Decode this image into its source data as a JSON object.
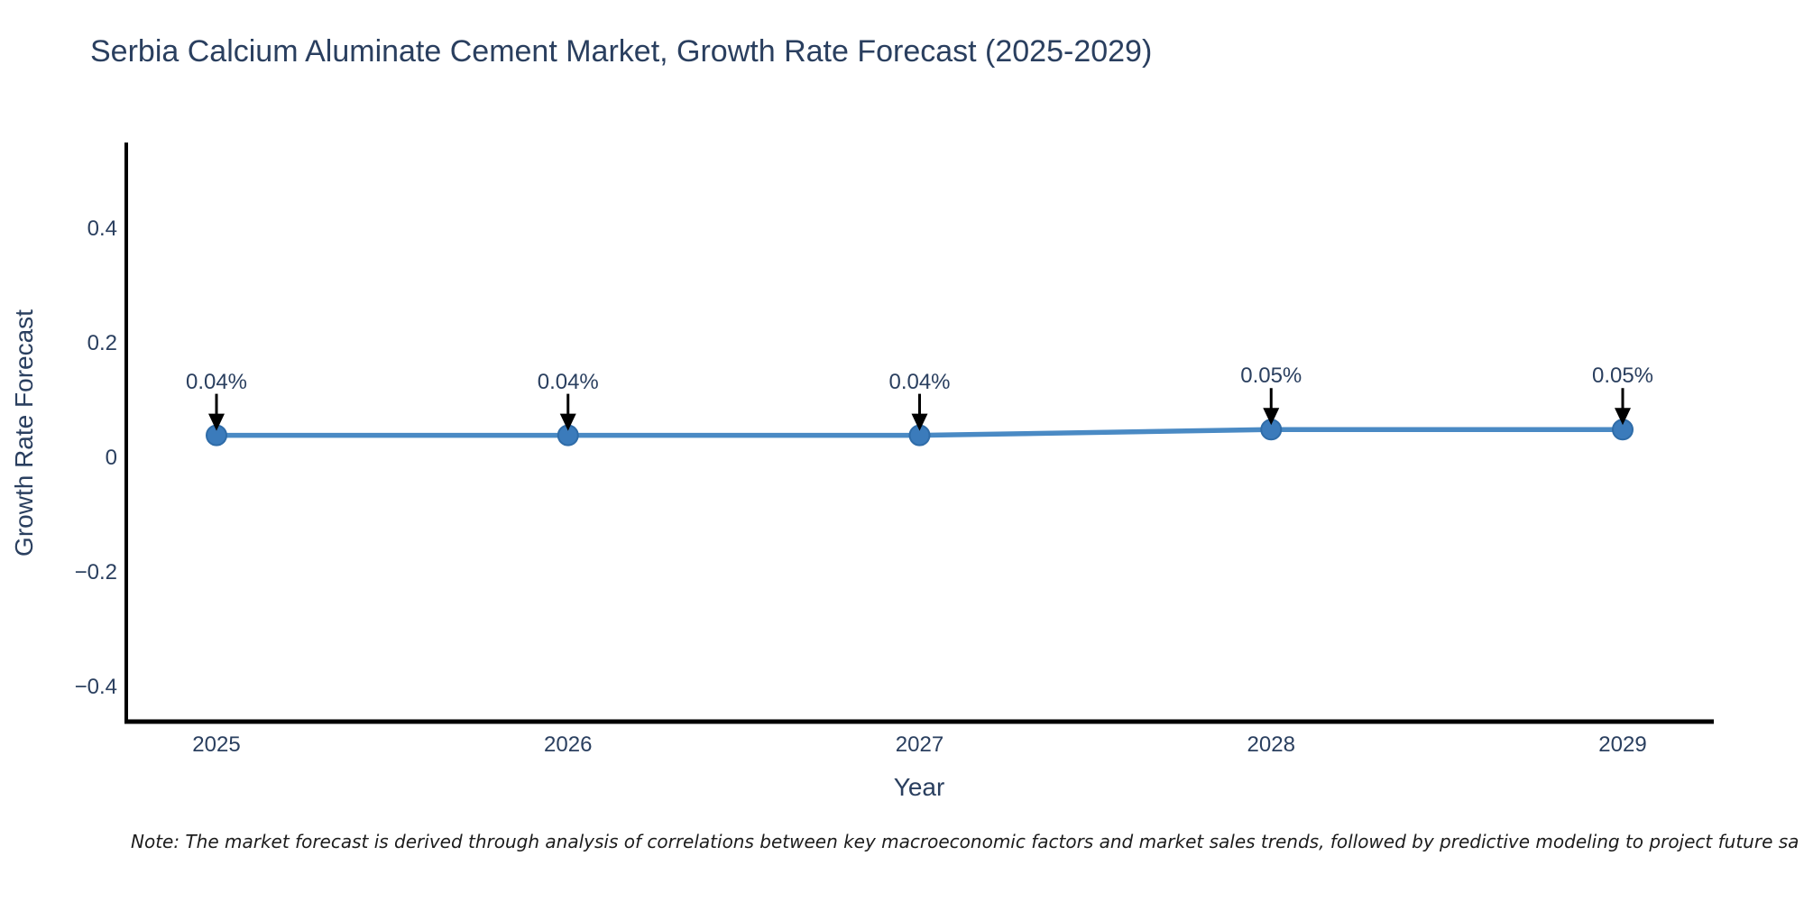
{
  "chart": {
    "title": "Serbia Calcium Aluminate Cement Market, Growth Rate Forecast (2025-2029)",
    "x_axis_title": "Year",
    "y_axis_title": "Growth Rate Forecast",
    "note": "Note: The market forecast is derived through analysis of correlations between key macroeconomic factors and market sales trends, followed by predictive modeling to project future sa"
  },
  "chart_data": {
    "type": "line",
    "title": "Serbia Calcium Aluminate Cement Market, Growth Rate Forecast (2025-2029)",
    "xlabel": "Year",
    "ylabel": "Growth Rate Forecast",
    "x": [
      2025,
      2026,
      2027,
      2028,
      2029
    ],
    "x_tick_labels": [
      "2025",
      "2026",
      "2027",
      "2028",
      "2029"
    ],
    "values": [
      0.04,
      0.04,
      0.04,
      0.05,
      0.05
    ],
    "point_labels": [
      "0.04%",
      "0.04%",
      "0.04%",
      "0.05%",
      "0.05%"
    ],
    "y_ticks": [
      0.4,
      0.2,
      0,
      -0.2,
      -0.4
    ],
    "y_tick_labels": [
      "0.4",
      "0.2",
      "0",
      "−0.2",
      "−0.4"
    ],
    "ylim": [
      -0.52,
      0.56
    ],
    "grid": false,
    "legend": false,
    "annotations_have_arrows": true,
    "colors": {
      "line": "#4a8ac4",
      "marker_fill": "#3b7bbb",
      "marker_edge": "#2f6ca8",
      "arrow": "#000000",
      "text": "#2a3f5f",
      "axis_line": "#000000",
      "background": "#ffffff"
    }
  }
}
